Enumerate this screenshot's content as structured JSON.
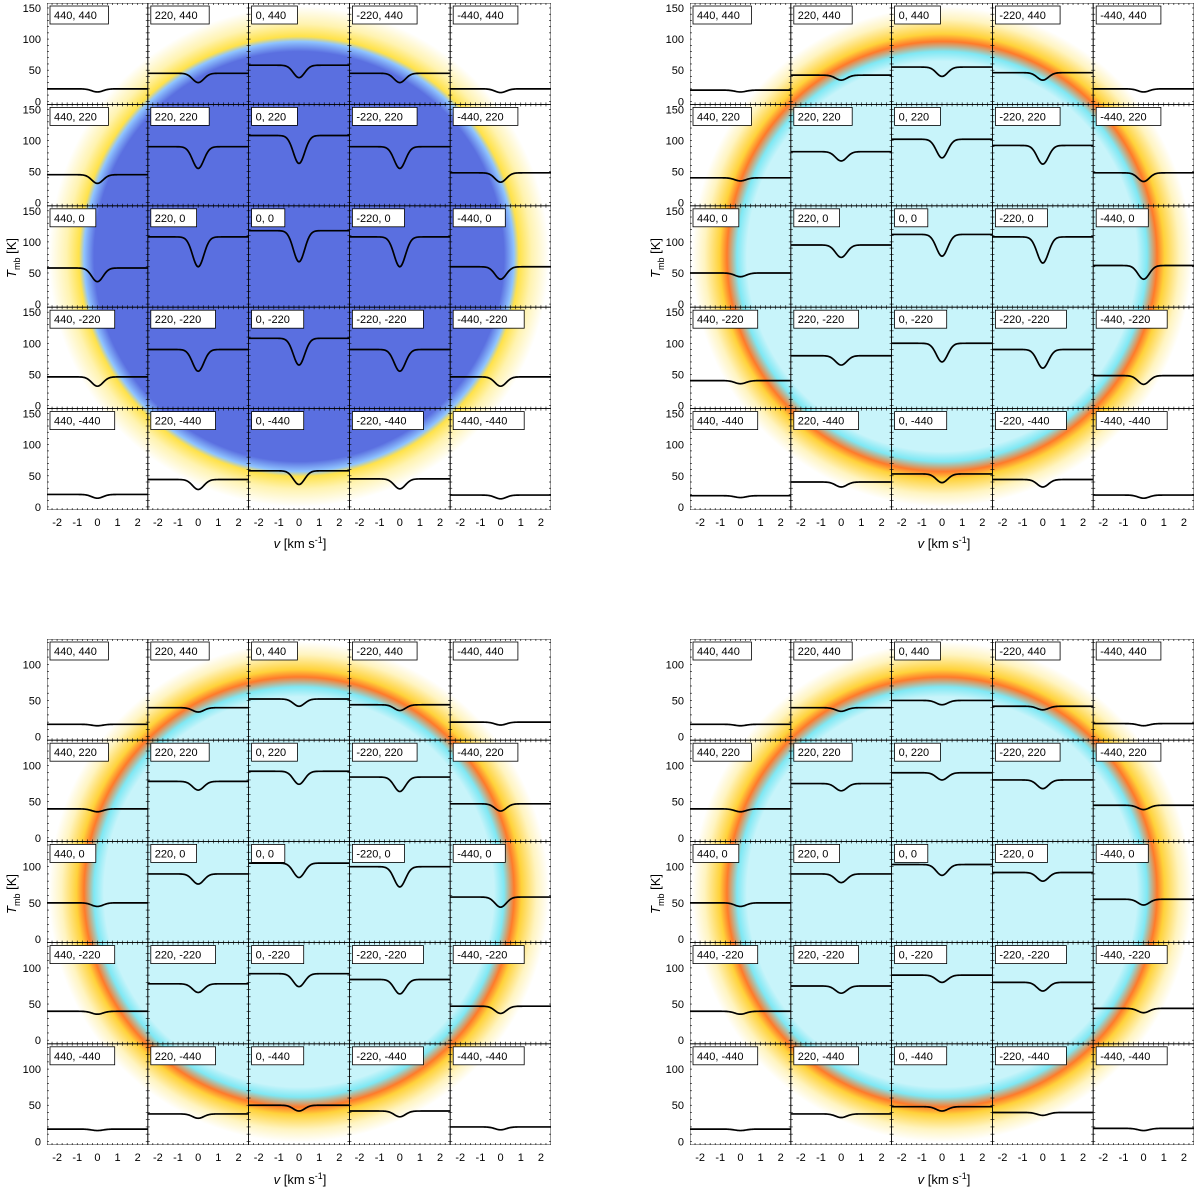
{
  "figure": {
    "ylabel_var": "T",
    "ylabel_sub": "mb",
    "ylabel_unit": " [K]",
    "xlabel_var": "v",
    "xlabel_unit": " [km s",
    "xlabel_exp": "-1",
    "xlabel_close": "]"
  },
  "colors": {
    "line": "#000000",
    "disk_panel1": "#5a6fe0",
    "disk_other": "#c8f4fa",
    "disk_edge": "#ff7a2a",
    "halo": "#ffe24a"
  },
  "chart_data": [
    {
      "type": "line",
      "panel": "top-left",
      "xlim": [
        -2.5,
        2.5
      ],
      "ylim": [
        -5,
        158
      ],
      "xticks": [
        -2,
        -1,
        0,
        1,
        2
      ],
      "yticks": [
        0,
        50,
        100,
        150
      ],
      "offsets_ra": [
        440,
        220,
        0,
        -220,
        -440
      ],
      "offsets_dec": [
        440,
        220,
        0,
        -220,
        -440
      ],
      "labels": [
        [
          "440, 440",
          "220, 440",
          "0, 440",
          "-220, 440",
          "-440, 440"
        ],
        [
          "440, 220",
          "220, 220",
          "0, 220",
          "-220, 220",
          "-440, 220"
        ],
        [
          "440, 0",
          "220, 0",
          "0, 0",
          "-220, 0",
          "-440, 0"
        ],
        [
          "440, -220",
          "220, -220",
          "0, -220",
          "-220, -220",
          "-440, -220"
        ],
        [
          "440, -440",
          "220, -440",
          "0, -440",
          "-220, -440",
          "-440, -440"
        ]
      ],
      "continuum": [
        [
          20,
          45,
          58,
          45,
          20
        ],
        [
          45,
          90,
          108,
          90,
          48
        ],
        [
          58,
          108,
          118,
          108,
          60
        ],
        [
          46,
          90,
          108,
          90,
          46
        ],
        [
          20,
          44,
          58,
          45,
          19
        ]
      ],
      "depth": [
        [
          5,
          15,
          20,
          15,
          6
        ],
        [
          14,
          35,
          45,
          35,
          15
        ],
        [
          22,
          48,
          50,
          48,
          20
        ],
        [
          15,
          35,
          43,
          35,
          15
        ],
        [
          6,
          16,
          22,
          16,
          6
        ]
      ],
      "disk_color": "#5a6fe0",
      "edge_color": "#ffe24a"
    },
    {
      "type": "line",
      "panel": "top-right",
      "xlim": [
        -2.5,
        2.5
      ],
      "ylim": [
        -5,
        158
      ],
      "xticks": [
        -2,
        -1,
        0,
        1,
        2
      ],
      "yticks": [
        0,
        50,
        100,
        150
      ],
      "offsets_ra": [
        440,
        220,
        0,
        -220,
        -440
      ],
      "offsets_dec": [
        440,
        220,
        0,
        -220,
        -440
      ],
      "labels": [
        [
          "440, 440",
          "220, 440",
          "0, 440",
          "-220, 440",
          "-440, 440"
        ],
        [
          "440, 220",
          "220, 220",
          "0, 220",
          "-220, 220",
          "-440, 220"
        ],
        [
          "440, 0",
          "220, 0",
          "0, 0",
          "-220, 0",
          "-440, 0"
        ],
        [
          "440, -220",
          "220, -220",
          "0, -220",
          "-220, -220",
          "-440, -220"
        ],
        [
          "440, -440",
          "220, -440",
          "0, -440",
          "-220, -440",
          "-440, -440"
        ]
      ],
      "continuum": [
        [
          18,
          42,
          55,
          46,
          20
        ],
        [
          40,
          82,
          102,
          92,
          48
        ],
        [
          50,
          95,
          112,
          108,
          62
        ],
        [
          40,
          80,
          100,
          90,
          48
        ],
        [
          18,
          40,
          53,
          44,
          19
        ]
      ],
      "depth": [
        [
          3,
          8,
          15,
          12,
          5
        ],
        [
          5,
          15,
          30,
          30,
          14
        ],
        [
          6,
          20,
          35,
          42,
          22
        ],
        [
          5,
          15,
          30,
          30,
          14
        ],
        [
          3,
          8,
          14,
          12,
          5
        ]
      ],
      "disk_color": "#c8f4fa",
      "edge_color": "#ff7a2a"
    },
    {
      "type": "line",
      "panel": "bottom-left",
      "xlim": [
        -2.5,
        2.5
      ],
      "ylim": [
        -5,
        135
      ],
      "xticks": [
        -2,
        -1,
        0,
        1,
        2
      ],
      "yticks": [
        0,
        50,
        100
      ],
      "offsets_ra": [
        440,
        220,
        0,
        -220,
        -440
      ],
      "offsets_dec": [
        440,
        220,
        0,
        -220,
        -440
      ],
      "labels": [
        [
          "440, 440",
          "220, 440",
          "0, 440",
          "-220, 440",
          "-440, 440"
        ],
        [
          "440, 220",
          "220, 220",
          "0, 220",
          "-220, 220",
          "-440, 220"
        ],
        [
          "440, 0",
          "220, 0",
          "0, 0",
          "-220, 0",
          "-440, 0"
        ],
        [
          "440, -220",
          "220, -220",
          "0, -220",
          "-220, -220",
          "-440, -220"
        ],
        [
          "440, -440",
          "220, -440",
          "0, -440",
          "-220, -440",
          "-440, -440"
        ]
      ],
      "continuum": [
        [
          17,
          40,
          52,
          44,
          20
        ],
        [
          40,
          78,
          92,
          84,
          47
        ],
        [
          50,
          90,
          105,
          100,
          58
        ],
        [
          40,
          78,
          92,
          84,
          47
        ],
        [
          17,
          38,
          50,
          42,
          20
        ]
      ],
      "depth": [
        [
          2,
          6,
          10,
          8,
          4
        ],
        [
          4,
          12,
          18,
          20,
          10
        ],
        [
          5,
          14,
          20,
          28,
          14
        ],
        [
          4,
          12,
          18,
          20,
          10
        ],
        [
          2,
          6,
          8,
          8,
          4
        ]
      ],
      "disk_color": "#c8f4fa",
      "edge_color": "#ff7a2a"
    },
    {
      "type": "line",
      "panel": "bottom-right",
      "xlim": [
        -2.5,
        2.5
      ],
      "ylim": [
        -5,
        135
      ],
      "xticks": [
        -2,
        -1,
        0,
        1,
        2
      ],
      "yticks": [
        0,
        50,
        100
      ],
      "offsets_ra": [
        440,
        220,
        0,
        -220,
        -440
      ],
      "offsets_dec": [
        440,
        220,
        0,
        -220,
        -440
      ],
      "labels": [
        [
          "440, 440",
          "220, 440",
          "0, 440",
          "-220, 440",
          "-440, 440"
        ],
        [
          "440, 220",
          "220, 220",
          "0, 220",
          "-220, 220",
          "-440, 220"
        ],
        [
          "440, 0",
          "220, 0",
          "0, 0",
          "-220, 0",
          "-440, 0"
        ],
        [
          "440, -220",
          "220, -220",
          "0, -220",
          "-220, -220",
          "-440, -220"
        ],
        [
          "440, -440",
          "220, -440",
          "0, -440",
          "-220, -440",
          "-440, -440"
        ]
      ],
      "continuum": [
        [
          17,
          40,
          50,
          42,
          18
        ],
        [
          40,
          75,
          90,
          80,
          45
        ],
        [
          50,
          90,
          103,
          92,
          55
        ],
        [
          40,
          75,
          90,
          80,
          44
        ],
        [
          17,
          38,
          48,
          40,
          18
        ]
      ],
      "depth": [
        [
          2,
          5,
          6,
          5,
          3
        ],
        [
          4,
          10,
          10,
          12,
          6
        ],
        [
          5,
          12,
          15,
          12,
          8
        ],
        [
          4,
          10,
          10,
          12,
          6
        ],
        [
          2,
          5,
          6,
          4,
          3
        ]
      ],
      "disk_color": "#c8f4fa",
      "edge_color": "#ff7a2a"
    }
  ]
}
